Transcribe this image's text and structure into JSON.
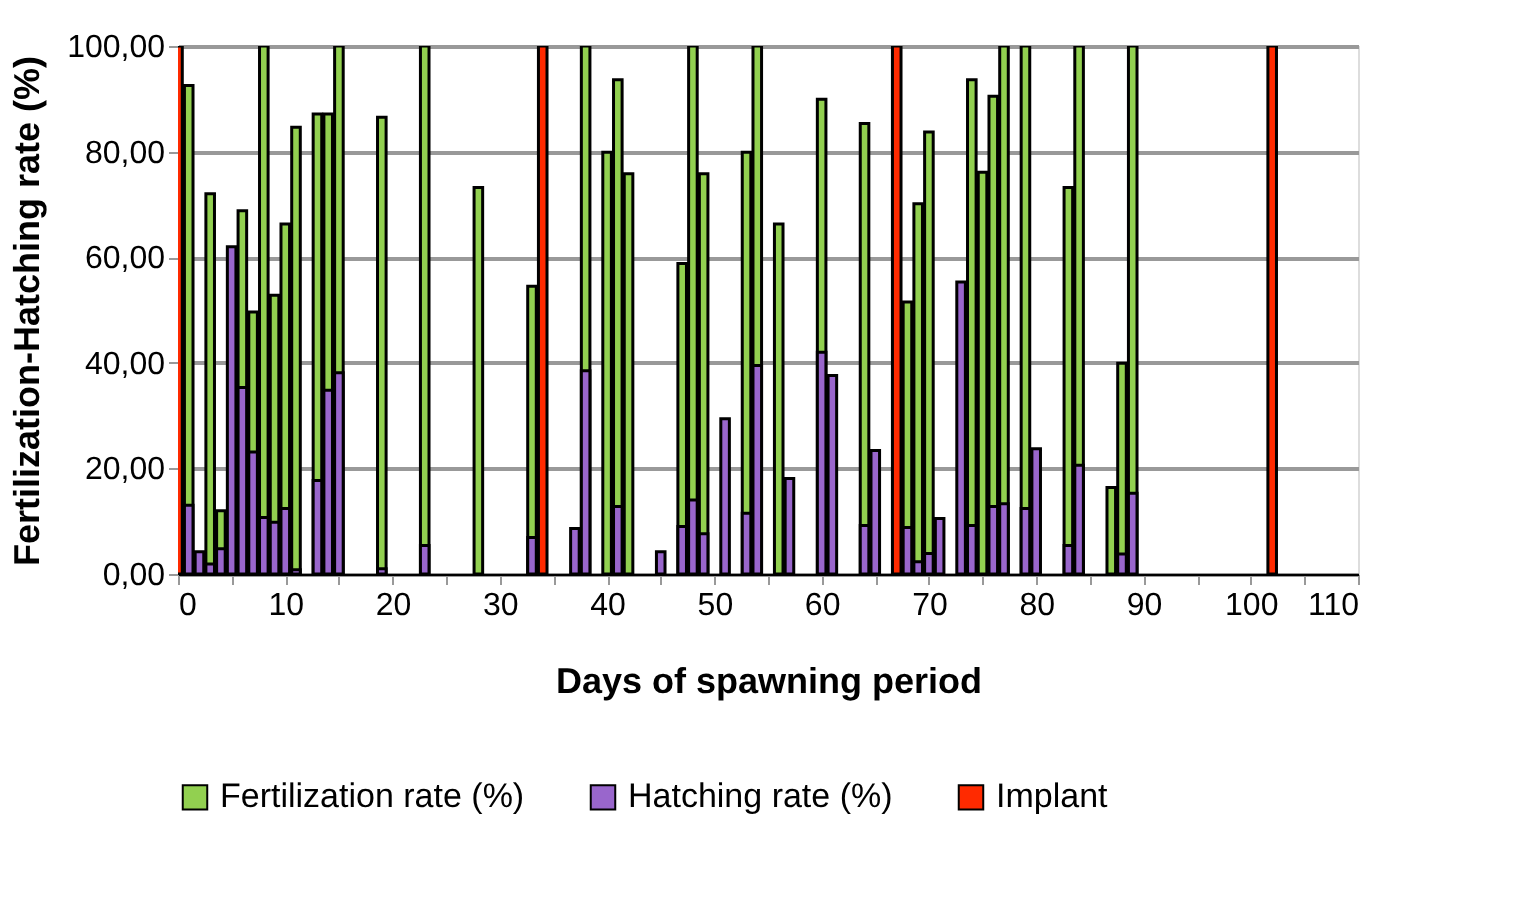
{
  "chart_data": {
    "type": "bar",
    "xlabel": "Days of spawning period",
    "ylabel": "Fertilization-Hatching rate (%)",
    "series": [
      {
        "name": "Fertilization rate (%)",
        "color": "#92d050",
        "x": [
          1,
          3,
          4,
          6,
          7,
          8,
          9,
          10,
          11,
          13,
          14,
          15,
          19,
          23,
          28,
          33,
          38,
          40,
          41,
          42,
          47,
          48,
          49,
          53,
          54,
          56,
          60,
          64,
          68,
          69,
          70,
          74,
          75,
          76,
          77,
          79,
          83,
          84,
          87,
          88,
          89
        ],
        "values": [
          92.5,
          72,
          12,
          68.8,
          49.6,
          100,
          52.8,
          66.3,
          84.6,
          87.1,
          87.1,
          100,
          86.5,
          100,
          73.2,
          54.5,
          100,
          79.9,
          93.6,
          75.8,
          58.8,
          100,
          75.8,
          79.9,
          100,
          66.3,
          89.9,
          85.3,
          51.5,
          70.1,
          83.7,
          93.6,
          76.1,
          90.5,
          100,
          100,
          73.2,
          100,
          16.4,
          39.9,
          100
        ]
      },
      {
        "name": "Hatching rate (%)",
        "color": "#9966cc",
        "x": [
          1,
          2,
          3,
          4,
          5,
          6,
          7,
          8,
          9,
          10,
          11,
          13,
          14,
          15,
          19,
          23,
          33,
          37,
          38,
          41,
          45,
          47,
          48,
          49,
          51,
          53,
          54,
          57,
          60,
          61,
          64,
          65,
          68,
          69,
          70,
          71,
          73,
          74,
          76,
          77,
          79,
          80,
          83,
          84,
          88,
          89
        ],
        "values": [
          13,
          4.2,
          1.9,
          4.8,
          62,
          35.3,
          23.1,
          10.7,
          9.8,
          12.4,
          0.8,
          17.7,
          34.8,
          38.1,
          1,
          5.4,
          6.9,
          8.6,
          38.5,
          12.8,
          4.2,
          9,
          14,
          7.6,
          29.4,
          11.5,
          39.5,
          18.1,
          42,
          37.6,
          9.2,
          23.4,
          8.8,
          2.3,
          3.9,
          10.5,
          55.3,
          9.2,
          12.8,
          13.3,
          12.4,
          23.7,
          5.4,
          20.6,
          3.8,
          15.3
        ]
      },
      {
        "name": "Implant",
        "color": "#ff2a00",
        "x": [
          0,
          34,
          67,
          102
        ],
        "values": [
          100,
          100,
          100,
          100
        ]
      }
    ],
    "xlim": [
      0,
      110
    ],
    "xticks": [
      0,
      {
        "value": 5,
        "label": null
      },
      10,
      {
        "value": 15,
        "label": null
      },
      20,
      {
        "value": 25,
        "label": null
      },
      30,
      {
        "value": 35,
        "label": null
      },
      40,
      {
        "value": 45,
        "label": null
      },
      50,
      {
        "value": 55,
        "label": null
      },
      60,
      {
        "value": 65,
        "label": null
      },
      70,
      {
        "value": 75,
        "label": null
      },
      80,
      {
        "value": 85,
        "label": null
      },
      90,
      {
        "value": 95,
        "label": null
      },
      100,
      {
        "value": 105,
        "label": null
      },
      110
    ],
    "ylim": [
      0,
      100
    ],
    "yticks": [
      {
        "value": 0,
        "label": "0,00"
      },
      {
        "value": 20,
        "label": "20,00"
      },
      {
        "value": 40,
        "label": "40,00"
      },
      {
        "value": 60,
        "label": "60,00"
      },
      {
        "value": 80,
        "label": "80,00"
      },
      {
        "value": 100,
        "label": "100,00"
      }
    ],
    "grid": "y",
    "legend": "bottom"
  }
}
